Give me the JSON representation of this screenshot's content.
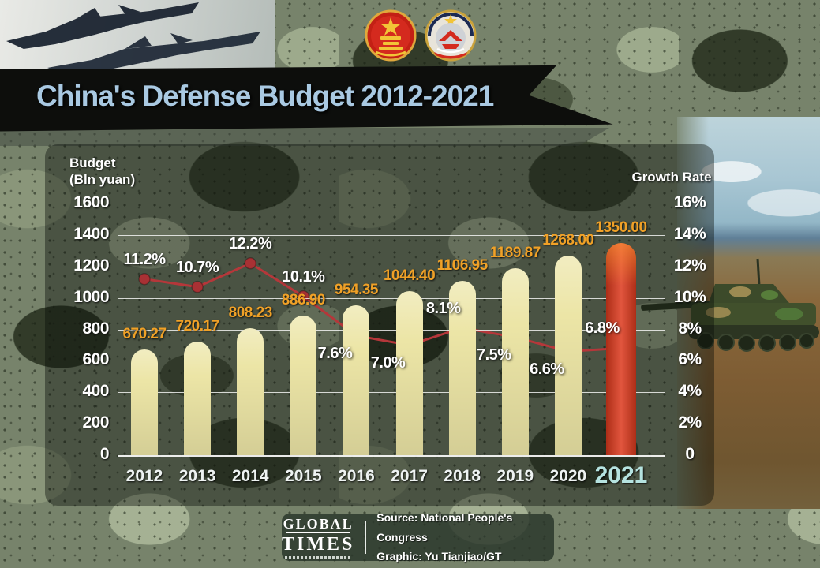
{
  "title": "China's Defense Budget 2012-2021",
  "header": {
    "emblems": [
      "npc-emblem",
      "cppcc-emblem"
    ]
  },
  "axes": {
    "left_label_line1": "Budget",
    "left_label_line2": "(Bln yuan)",
    "right_label": "Growth Rate",
    "left_ticks": [
      "1600",
      "1400",
      "1200",
      "1000",
      "800",
      "600",
      "400",
      "200",
      "0"
    ],
    "right_ticks": [
      "16%",
      "14%",
      "12%",
      "10%",
      "8%",
      "6%",
      "4%",
      "2%",
      "0"
    ]
  },
  "chart_data": {
    "type": "bar",
    "categories": [
      "2012",
      "2013",
      "2014",
      "2015",
      "2016",
      "2017",
      "2018",
      "2019",
      "2020",
      "2021"
    ],
    "series": [
      {
        "name": "Budget (Bln yuan)",
        "type": "bar",
        "values": [
          670.27,
          720.17,
          808.23,
          886.9,
          954.35,
          1044.4,
          1106.95,
          1189.87,
          1268.0,
          1350.0
        ]
      },
      {
        "name": "Growth Rate",
        "type": "line",
        "values": [
          11.2,
          10.7,
          12.2,
          10.1,
          7.6,
          7.0,
          8.1,
          7.5,
          6.6,
          6.8
        ]
      }
    ],
    "bar_value_labels": [
      "670.27",
      "720.17",
      "808.23",
      "886.90",
      "954.35",
      "1044.40",
      "1106.95",
      "1189.87",
      "1268.00",
      "1350.00"
    ],
    "growth_value_labels": [
      "11.2%",
      "10.7%",
      "12.2%",
      "10.1%",
      "7.6%",
      "7.0%",
      "8.1%",
      "7.5%",
      "6.6%",
      "6.8%"
    ],
    "growth_label_side": [
      "above",
      "above",
      "above",
      "above",
      "below-left",
      "below-left",
      "above-left",
      "below-left",
      "below-left",
      "above-left"
    ],
    "left_axis_range": [
      0,
      1600
    ],
    "right_axis_range": [
      0,
      16
    ],
    "highlight_year": "2021",
    "grid": true,
    "title": "China's Defense Budget 2012-2021",
    "xlabel": "",
    "ylabel_left": "Budget (Bln yuan)",
    "ylabel_right": "Growth Rate"
  },
  "footer": {
    "logo_line1": "GLOBAL",
    "logo_line2": "TIMES",
    "source": "Source: National People's Congress",
    "graphic": "Graphic: Yu Tianjiao/GT"
  },
  "colors": {
    "title": "#a9c9e2",
    "bar": "#ece5a6",
    "bar_highlight": "#dd3a1e",
    "line": "#b5373a",
    "line_dot": "#a83134",
    "value_label": "#f0a127",
    "year_highlight": "#b5e3e0",
    "banner": "#0d0e0c"
  }
}
